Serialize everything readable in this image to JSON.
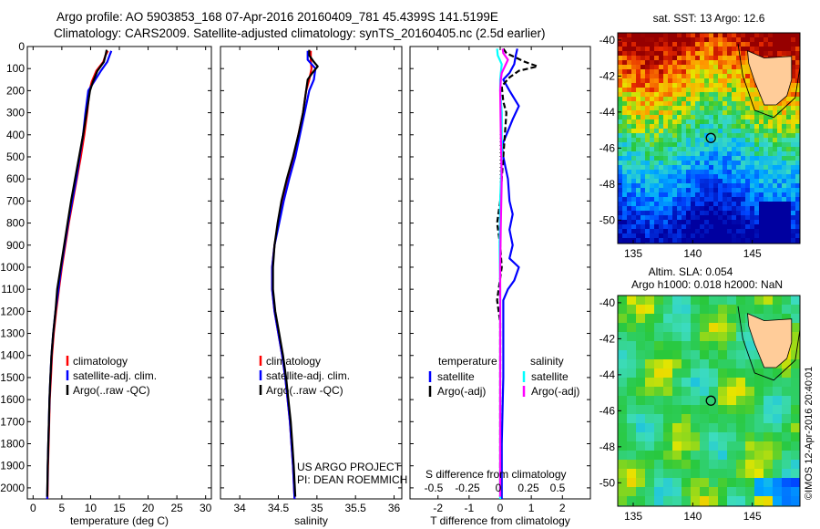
{
  "header": {
    "line1": "Argo profile: AO 5903853_168 07-Apr-2016 20160409_781 45.4399S 141.5199E",
    "line2": "Climatology: CARS2009. Satellite-adjusted climatology: synTS_20160405.nc (2.5d earlier)"
  },
  "colors": {
    "clim": "#ff0000",
    "sat": "#0000ff",
    "argo": "#000000",
    "sal_sat": "#00ffff",
    "sal_argo": "#ff00ff"
  },
  "depth_axis": {
    "ylim": [
      0,
      2050
    ],
    "ticks": [
      0,
      100,
      200,
      300,
      400,
      500,
      600,
      700,
      800,
      900,
      1000,
      1100,
      1200,
      1300,
      1400,
      1500,
      1600,
      1700,
      1800,
      1900,
      2000
    ]
  },
  "chart_data": [
    {
      "type": "line",
      "id": "temperature",
      "xlabel": "temperature (deg C)",
      "xlim": [
        -1,
        31
      ],
      "xticks": [
        0,
        5,
        10,
        15,
        20,
        25,
        30
      ],
      "legend": [
        "climatology",
        "satellite-adj. clim.",
        "Argo(..raw -QC)"
      ],
      "series": [
        {
          "name": "climatology",
          "color": "#ff0000",
          "points": [
            [
              13.0,
              20
            ],
            [
              12.6,
              40
            ],
            [
              12.2,
              70
            ],
            [
              11.0,
              110
            ],
            [
              10.2,
              160
            ],
            [
              9.8,
              200
            ],
            [
              9.4,
              300
            ],
            [
              8.9,
              400
            ],
            [
              8.3,
              500
            ],
            [
              7.6,
              600
            ],
            [
              6.9,
              700
            ],
            [
              6.2,
              800
            ],
            [
              5.6,
              900
            ],
            [
              5.0,
              1000
            ],
            [
              4.5,
              1100
            ],
            [
              4.0,
              1200
            ],
            [
              3.6,
              1300
            ],
            [
              3.3,
              1400
            ],
            [
              3.1,
              1500
            ],
            [
              2.9,
              1600
            ],
            [
              2.8,
              1700
            ],
            [
              2.7,
              1800
            ],
            [
              2.6,
              1900
            ],
            [
              2.5,
              2050
            ]
          ]
        },
        {
          "name": "satellite-adj. clim.",
          "color": "#0000ff",
          "points": [
            [
              13.6,
              20
            ],
            [
              13.3,
              40
            ],
            [
              12.9,
              70
            ],
            [
              11.8,
              110
            ],
            [
              10.6,
              160
            ],
            [
              9.6,
              200
            ],
            [
              9.1,
              300
            ],
            [
              8.7,
              400
            ],
            [
              8.1,
              500
            ],
            [
              7.5,
              600
            ],
            [
              6.8,
              700
            ],
            [
              6.1,
              800
            ],
            [
              5.5,
              900
            ],
            [
              4.9,
              1000
            ],
            [
              4.4,
              1100
            ],
            [
              3.9,
              1200
            ],
            [
              3.5,
              1300
            ],
            [
              3.2,
              1400
            ],
            [
              3.0,
              1500
            ],
            [
              2.85,
              1600
            ],
            [
              2.75,
              1700
            ],
            [
              2.65,
              1800
            ],
            [
              2.55,
              1900
            ],
            [
              2.45,
              2050
            ]
          ]
        },
        {
          "name": "Argo(..raw -QC)",
          "color": "#000000",
          "points": [
            [
              12.8,
              15
            ],
            [
              12.6,
              40
            ],
            [
              12.3,
              70
            ],
            [
              11.2,
              110
            ],
            [
              10.4,
              160
            ],
            [
              9.9,
              200
            ],
            [
              9.3,
              300
            ],
            [
              8.7,
              400
            ],
            [
              8.0,
              500
            ],
            [
              7.3,
              600
            ],
            [
              6.6,
              700
            ],
            [
              6.0,
              800
            ],
            [
              5.4,
              900
            ],
            [
              4.8,
              1000
            ],
            [
              4.2,
              1100
            ],
            [
              3.9,
              1200
            ],
            [
              3.5,
              1300
            ],
            [
              3.2,
              1400
            ],
            [
              3.0,
              1500
            ],
            [
              2.85,
              1600
            ],
            [
              2.75,
              1700
            ],
            [
              2.65,
              1800
            ],
            [
              2.55,
              1900
            ],
            [
              2.45,
              2040
            ]
          ]
        }
      ]
    },
    {
      "type": "line",
      "id": "salinity",
      "xlabel": "salinity",
      "xlim": [
        33.75,
        36.1
      ],
      "xticks": [
        34,
        34.5,
        35,
        35.5,
        36
      ],
      "legend": [
        "climatology",
        "satellite-adj. clim.",
        "Argo(..raw -QC)"
      ],
      "annotations": [
        "US ARGO PROJECT",
        "PI: DEAN ROEMMICH"
      ],
      "series": [
        {
          "name": "climatology",
          "color": "#ff0000",
          "points": [
            [
              34.92,
              20
            ],
            [
              34.92,
              60
            ],
            [
              34.93,
              100
            ],
            [
              34.9,
              150
            ],
            [
              34.86,
              200
            ],
            [
              34.82,
              300
            ],
            [
              34.76,
              400
            ],
            [
              34.7,
              500
            ],
            [
              34.63,
              600
            ],
            [
              34.56,
              700
            ],
            [
              34.5,
              800
            ],
            [
              34.45,
              900
            ],
            [
              34.42,
              1000
            ],
            [
              34.42,
              1100
            ],
            [
              34.45,
              1200
            ],
            [
              34.5,
              1300
            ],
            [
              34.55,
              1400
            ],
            [
              34.59,
              1500
            ],
            [
              34.62,
              1600
            ],
            [
              34.65,
              1700
            ],
            [
              34.67,
              1800
            ],
            [
              34.69,
              1900
            ],
            [
              34.71,
              2050
            ]
          ]
        },
        {
          "name": "satellite-adj. clim.",
          "color": "#0000ff",
          "points": [
            [
              34.88,
              20
            ],
            [
              34.88,
              60
            ],
            [
              34.98,
              100
            ],
            [
              34.96,
              150
            ],
            [
              34.9,
              200
            ],
            [
              34.84,
              300
            ],
            [
              34.78,
              400
            ],
            [
              34.72,
              500
            ],
            [
              34.64,
              600
            ],
            [
              34.57,
              700
            ],
            [
              34.51,
              800
            ],
            [
              34.45,
              900
            ],
            [
              34.42,
              1000
            ],
            [
              34.42,
              1100
            ],
            [
              34.45,
              1200
            ],
            [
              34.5,
              1300
            ],
            [
              34.55,
              1400
            ],
            [
              34.59,
              1500
            ],
            [
              34.62,
              1600
            ],
            [
              34.65,
              1700
            ],
            [
              34.67,
              1800
            ],
            [
              34.69,
              1900
            ],
            [
              34.71,
              2050
            ]
          ]
        },
        {
          "name": "Argo(..raw -QC)",
          "color": "#000000",
          "points": [
            [
              34.9,
              15
            ],
            [
              34.9,
              40
            ],
            [
              34.96,
              70
            ],
            [
              35.01,
              90
            ],
            [
              34.94,
              120
            ],
            [
              34.88,
              150
            ],
            [
              34.86,
              200
            ],
            [
              34.82,
              300
            ],
            [
              34.76,
              400
            ],
            [
              34.69,
              500
            ],
            [
              34.61,
              600
            ],
            [
              34.54,
              700
            ],
            [
              34.49,
              800
            ],
            [
              34.45,
              900
            ],
            [
              34.43,
              1000
            ],
            [
              34.43,
              1100
            ],
            [
              34.46,
              1200
            ],
            [
              34.51,
              1300
            ],
            [
              34.56,
              1400
            ],
            [
              34.6,
              1500
            ],
            [
              34.63,
              1600
            ],
            [
              34.66,
              1700
            ],
            [
              34.68,
              1800
            ],
            [
              34.7,
              1900
            ],
            [
              34.72,
              2040
            ]
          ]
        }
      ]
    },
    {
      "type": "line",
      "id": "difference",
      "xlabel": "T difference from climatology",
      "xlabel_top": "S difference from climatology",
      "xlim": [
        -2.9,
        2.9
      ],
      "xticks": [
        -2,
        -1,
        0,
        1,
        2
      ],
      "s_axis_ticks": [
        "-0.5",
        "-0.25",
        "0",
        "0.25",
        "0.5"
      ],
      "legend_headers": [
        "temperature",
        "salinity"
      ],
      "legend": [
        "satellite",
        "Argo(-adj)",
        "satellite",
        "Argo(-adj)"
      ],
      "series": [
        {
          "name": "temperature satellite",
          "color": "#0000ff",
          "points": [
            [
              0.55,
              10
            ],
            [
              0.5,
              40
            ],
            [
              0.45,
              80
            ],
            [
              0.3,
              120
            ],
            [
              0.1,
              150
            ],
            [
              0.3,
              200
            ],
            [
              0.6,
              270
            ],
            [
              0.4,
              330
            ],
            [
              0.2,
              400
            ],
            [
              0.05,
              450
            ],
            [
              0.1,
              500
            ],
            [
              0.25,
              600
            ],
            [
              0.3,
              700
            ],
            [
              0.4,
              760
            ],
            [
              0.3,
              830
            ],
            [
              0.4,
              900
            ],
            [
              0.3,
              960
            ],
            [
              0.6,
              1000
            ],
            [
              0.45,
              1060
            ],
            [
              0.25,
              1100
            ],
            [
              0.1,
              1150
            ],
            [
              0.1,
              1300
            ],
            [
              0.1,
              1500
            ],
            [
              0.05,
              1800
            ],
            [
              0.05,
              2050
            ]
          ]
        },
        {
          "name": "temperature Argo(-adj)",
          "color": "#000000",
          "points": [
            [
              0.1,
              10
            ],
            [
              0.2,
              30
            ],
            [
              0.8,
              70
            ],
            [
              1.2,
              90
            ],
            [
              0.6,
              110
            ],
            [
              0.3,
              140
            ],
            [
              0.05,
              180
            ],
            [
              0.1,
              250
            ],
            [
              0.2,
              300
            ],
            [
              0.15,
              400
            ],
            [
              0.1,
              500
            ],
            [
              0.05,
              600
            ],
            [
              0.0,
              700
            ],
            [
              -0.1,
              800
            ],
            [
              0.0,
              900
            ],
            [
              0.05,
              1000
            ],
            [
              -0.05,
              1100
            ],
            [
              -0.1,
              1150
            ],
            [
              0.0,
              1250
            ],
            [
              0.0,
              1500
            ],
            [
              0.0,
              1800
            ],
            [
              0.0,
              2040
            ]
          ]
        },
        {
          "name": "salinity satellite",
          "color": "#00ffff",
          "points": [
            [
              -0.1,
              10
            ],
            [
              -0.08,
              40
            ],
            [
              0.05,
              80
            ],
            [
              0.02,
              120
            ],
            [
              0.0,
              150
            ],
            [
              0.0,
              200
            ],
            [
              0.05,
              300
            ],
            [
              0.05,
              500
            ],
            [
              0.0,
              700
            ],
            [
              -0.02,
              900
            ],
            [
              0.0,
              1100
            ],
            [
              0.0,
              1500
            ],
            [
              0.0,
              2050
            ]
          ]
        },
        {
          "name": "salinity Argo(-adj)",
          "color": "#ff00ff",
          "points": [
            [
              0.08,
              10
            ],
            [
              0.1,
              30
            ],
            [
              0.25,
              60
            ],
            [
              0.15,
              90
            ],
            [
              0.05,
              120
            ],
            [
              0.02,
              150
            ],
            [
              0.0,
              200
            ],
            [
              0.02,
              400
            ],
            [
              0.05,
              600
            ],
            [
              0.02,
              800
            ],
            [
              0.0,
              1000
            ],
            [
              0.0,
              1500
            ],
            [
              0.0,
              2040
            ]
          ]
        }
      ]
    },
    {
      "type": "heatmap",
      "id": "sst-map",
      "title": "sat. SST: 13 Argo: 12.6",
      "xticks": [
        135,
        140,
        145
      ],
      "yticks": [
        -40,
        -42,
        -44,
        -46,
        -48,
        -50
      ],
      "xlim": [
        133.7,
        149.0
      ],
      "ylim": [
        -51.3,
        -39.6
      ],
      "marker": {
        "lon": 141.52,
        "lat": -45.44
      }
    },
    {
      "type": "heatmap",
      "id": "sla-map",
      "title_line1": "Altim. SLA: 0.054",
      "title_line2": "Argo h1000: 0.018 h2000: NaN",
      "xticks": [
        135,
        140,
        145
      ],
      "yticks": [
        -40,
        -42,
        -44,
        -46,
        -48,
        -50
      ],
      "xlim": [
        133.7,
        149.0
      ],
      "ylim": [
        -51.3,
        -39.6
      ],
      "marker": {
        "lon": 141.52,
        "lat": -45.44
      }
    }
  ],
  "credit": "©IMOS 12-Apr-2016 20:40:01"
}
